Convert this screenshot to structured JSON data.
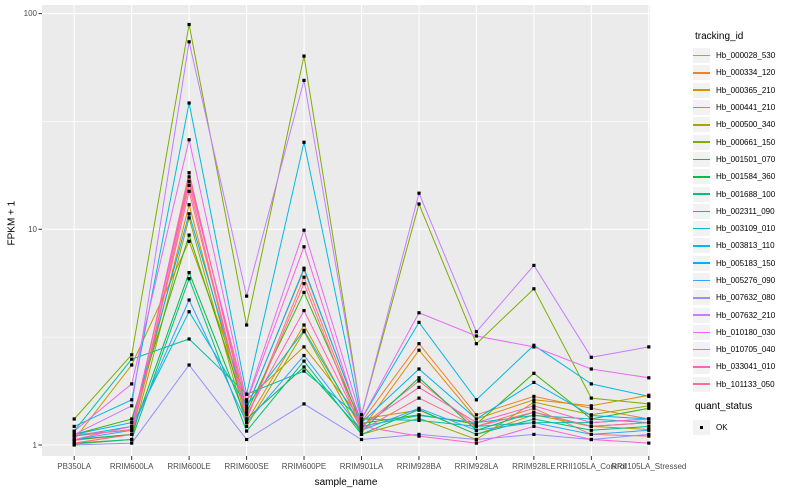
{
  "chart_data": {
    "type": "line",
    "title": "",
    "xlabel": "sample_name",
    "ylabel": "FPKM + 1",
    "y_scale": "log10",
    "ylim": [
      1,
      100
    ],
    "y_ticks": [
      {
        "label": "100",
        "value": 100
      },
      {
        "label": "10",
        "value": 10
      },
      {
        "label": "1",
        "value": 1
      }
    ],
    "grid": "on",
    "legend_position": "right",
    "legend_title": "tracking_id",
    "quant_legend": {
      "title": "quant_status",
      "items": [
        "OK"
      ],
      "marker": "black-square"
    },
    "point_color": "#000000",
    "panel_bg": "#EBEBEB",
    "grid_color": "#FFFFFF",
    "categories": [
      "PB350LA",
      "RRIM600LA",
      "RRIM600LE",
      "RRIM600SE",
      "RRIM600PE",
      "RRIM901LA",
      "RRIM928BA",
      "RRIM928LA",
      "RRIM928LE",
      "RRII105LA_Control",
      "RRII105LA_Stressed"
    ],
    "series": [
      {
        "name": "Hb_000028_530",
        "color": "#F8766D",
        "values": [
          1.05,
          1.12,
          16,
          1.32,
          6,
          1.22,
          1.98,
          1.22,
          1.48,
          1.12,
          1.1
        ]
      },
      {
        "name": "Hb_000334_120",
        "color": "#EA8331",
        "values": [
          1.1,
          1.18,
          17.5,
          1.48,
          6.5,
          1.28,
          2.95,
          1.38,
          1.68,
          1.48,
          1.32
        ]
      },
      {
        "name": "Hb_000365_210",
        "color": "#D89000",
        "values": [
          1.02,
          1.12,
          13,
          1.28,
          3.6,
          1.18,
          2.75,
          1.32,
          1.62,
          1.52,
          1.7
        ]
      },
      {
        "name": "Hb_000441_210",
        "color": "#C09B00",
        "values": [
          1.06,
          2.35,
          8.8,
          1.62,
          2.85,
          1.32,
          1.45,
          1.12,
          1.38,
          1.22,
          1.18
        ]
      },
      {
        "name": "Hb_000500_340",
        "color": "#A3A500",
        "values": [
          1.01,
          1.06,
          11.3,
          1.22,
          3.35,
          1.12,
          1.33,
          1.06,
          1.58,
          1.38,
          1.52
        ]
      },
      {
        "name": "Hb_000661_150",
        "color": "#7CAE00",
        "values": [
          1.32,
          2.62,
          89,
          3.6,
          63.5,
          1.38,
          13.1,
          2.95,
          5.3,
          1.65,
          1.55
        ]
      },
      {
        "name": "Hb_001501_070",
        "color": "#39B600",
        "values": [
          1.12,
          1.32,
          9.4,
          1.42,
          5.1,
          1.26,
          1.38,
          1.25,
          2.15,
          1.32,
          1.48
        ]
      },
      {
        "name": "Hb_001584_360",
        "color": "#00BB4E",
        "values": [
          1.06,
          1.12,
          6.3,
          1.32,
          2.3,
          1.16,
          2.05,
          1.17,
          1.42,
          1.22,
          1.27
        ]
      },
      {
        "name": "Hb_001688_100",
        "color": "#00BF7D",
        "values": [
          1.02,
          1.06,
          5.9,
          1.16,
          2.45,
          1.12,
          1.46,
          1.12,
          1.32,
          1.17,
          1.22
        ]
      },
      {
        "name": "Hb_002311_090",
        "color": "#00C1A3",
        "values": [
          1.16,
          2.5,
          3.1,
          1.72,
          2.2,
          1.32,
          1.3,
          1.22,
          1.27,
          1.27,
          1.32
        ]
      },
      {
        "name": "Hb_003109_010",
        "color": "#00BFC4",
        "values": [
          1.1,
          1.22,
          4.15,
          1.52,
          3.4,
          1.22,
          1.37,
          1.27,
          1.37,
          1.32,
          1.27
        ]
      },
      {
        "name": "Hb_003813_110",
        "color": "#00BAE0",
        "values": [
          1.22,
          1.62,
          38.5,
          1.72,
          25.3,
          1.32,
          3.7,
          1.62,
          2.9,
          1.92,
          1.68
        ]
      },
      {
        "name": "Hb_005183_150",
        "color": "#00B0F6",
        "values": [
          1.12,
          1.27,
          11.8,
          1.47,
          6.6,
          1.27,
          2.25,
          1.32,
          1.95,
          1.37,
          1.32
        ]
      },
      {
        "name": "Hb_005276_090",
        "color": "#35A2FF",
        "values": [
          1.06,
          1.17,
          4.7,
          1.27,
          2.6,
          1.17,
          1.48,
          1.17,
          1.27,
          1.12,
          1.17
        ]
      },
      {
        "name": "Hb_007632_080",
        "color": "#9590FF",
        "values": [
          1,
          1.02,
          2.35,
          1.06,
          1.55,
          1.06,
          1.12,
          1.06,
          1.12,
          1.06,
          1.12
        ]
      },
      {
        "name": "Hb_007632_210",
        "color": "#C77CFF",
        "values": [
          1.12,
          1.52,
          74,
          4.9,
          49,
          1.38,
          14.7,
          3.35,
          6.8,
          2.55,
          2.85
        ]
      },
      {
        "name": "Hb_010180_030",
        "color": "#E76BF3",
        "values": [
          1.16,
          1.92,
          26,
          1.6,
          9.9,
          1.32,
          4.1,
          3.2,
          2.85,
          2.25,
          2.05
        ]
      },
      {
        "name": "Hb_010705_040",
        "color": "#FA62DB",
        "values": [
          1.06,
          1.22,
          16.7,
          1.58,
          8.3,
          1.22,
          1.1,
          1.02,
          1.22,
          1.06,
          1.02
        ]
      },
      {
        "name": "Hb_033041_010",
        "color": "#FF62BC",
        "values": [
          1.12,
          1.17,
          18.3,
          1.38,
          4.2,
          1.22,
          1.85,
          1.27,
          1.52,
          1.27,
          1.32
        ]
      },
      {
        "name": "Hb_101133_050",
        "color": "#FF6A98",
        "values": [
          1.02,
          1.12,
          15,
          1.32,
          5.6,
          1.17,
          1.65,
          1.22,
          1.42,
          1.22,
          1.27
        ]
      }
    ]
  }
}
